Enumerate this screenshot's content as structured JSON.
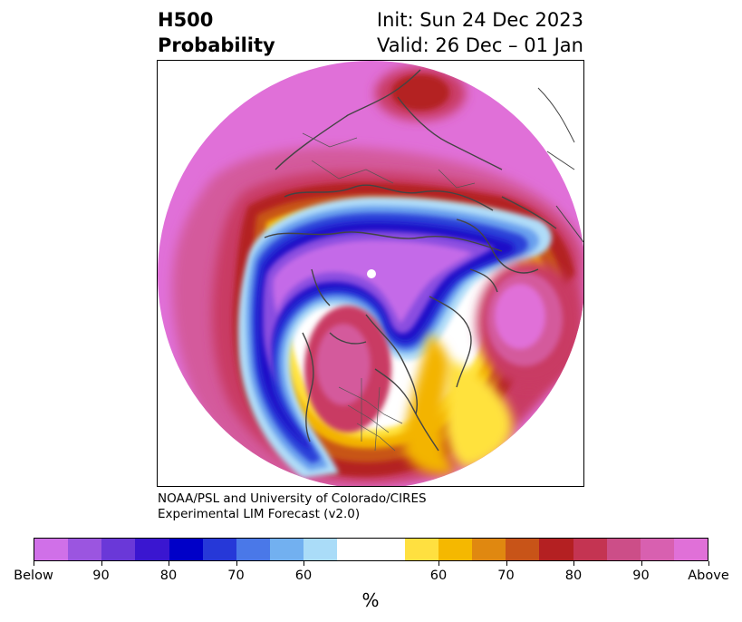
{
  "title": {
    "left_line1": "H500",
    "left_line2": "Probability",
    "right_line1": "Init: Sun 24 Dec 2023",
    "right_line2": "Valid: 26 Dec – 01 Jan"
  },
  "credit": {
    "line1": "NOAA/PSL and University of Colorado/CIRES",
    "line2": "Experimental LIM Forecast (v2.0)"
  },
  "colorbar": {
    "colors": [
      "#d070e8",
      "#9b55e0",
      "#6a38d8",
      "#3a16d0",
      "#0000c8",
      "#2638d8",
      "#4a78e8",
      "#72b0f0",
      "#aadcf8",
      "#ffffff",
      "#ffffff",
      "#ffe040",
      "#f5b800",
      "#e08810",
      "#c85418",
      "#b42022",
      "#c43452",
      "#cc4e88",
      "#d860b0",
      "#e070d8"
    ],
    "tick_labels": [
      "Below",
      "90",
      "80",
      "70",
      "60",
      "60",
      "70",
      "80",
      "90",
      "Above"
    ],
    "unit": "%"
  },
  "map": {
    "projection": "north-polar-stereographic",
    "colors": {
      "below_strong": "#c46ae8",
      "below_mid": "#8a4de0",
      "blue_core": "#1a10c8",
      "blue_mid": "#2a40d8",
      "blue_light": "#6aa0ee",
      "blue_pale": "#b0dcf8",
      "yellow": "#ffe23c",
      "gold": "#f3b400",
      "orange": "#d86a10",
      "red": "#b42022",
      "rose": "#c93b64",
      "pink": "#d45a9c",
      "magenta": "#e070d8",
      "coast": "#444444"
    }
  }
}
